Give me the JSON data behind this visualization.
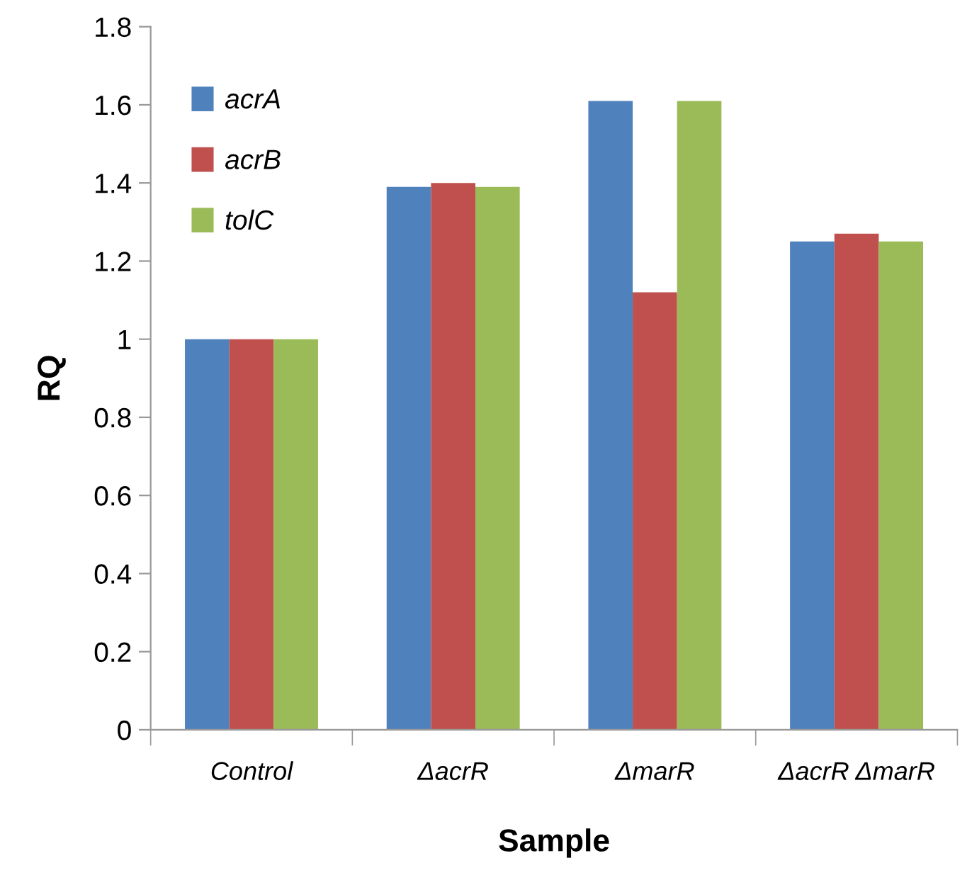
{
  "chart_data": {
    "type": "bar",
    "xlabel": "Sample",
    "ylabel": "RQ",
    "categories": [
      "Control",
      "ΔacrR",
      "ΔmarR",
      "ΔacrR ΔmarR"
    ],
    "series": [
      {
        "name": "acrA",
        "color": "#4f81bd",
        "values": [
          1.0,
          1.39,
          1.61,
          1.25
        ]
      },
      {
        "name": "acrB",
        "color": "#c0504d",
        "values": [
          1.0,
          1.4,
          1.12,
          1.27
        ]
      },
      {
        "name": "tolC",
        "color": "#9bbb59",
        "values": [
          1.0,
          1.39,
          1.61,
          1.25
        ]
      }
    ],
    "ylim": [
      0,
      1.8
    ],
    "yticks": [
      0,
      0.2,
      0.4,
      0.6,
      0.8,
      1,
      1.2,
      1.4,
      1.6,
      1.8
    ],
    "grid": false,
    "legend": "top left"
  }
}
